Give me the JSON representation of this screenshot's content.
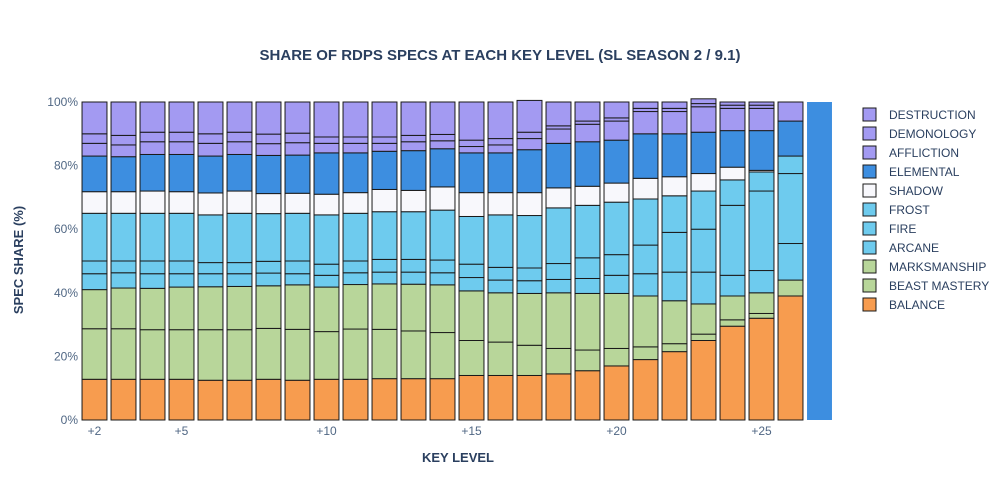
{
  "chart_data": {
    "type": "bar",
    "stacked": true,
    "title": "SHARE OF RDPS SPECS AT EACH KEY LEVEL (SL SEASON 2 / 9.1)",
    "xlabel": "KEY LEVEL",
    "ylabel": "SPEC SHARE (%)",
    "ylim": [
      0,
      100
    ],
    "y_ticks": [
      {
        "value": 0,
        "label": "0%"
      },
      {
        "value": 20,
        "label": "20%"
      },
      {
        "value": 40,
        "label": "40%"
      },
      {
        "value": 60,
        "label": "60%"
      },
      {
        "value": 80,
        "label": "80%"
      },
      {
        "value": 100,
        "label": "100%"
      }
    ],
    "x_ticks": [
      {
        "value": 2,
        "label": "+2"
      },
      {
        "value": 5,
        "label": "+5"
      },
      {
        "value": 10,
        "label": "+10"
      },
      {
        "value": 15,
        "label": "+15"
      },
      {
        "value": 20,
        "label": "+20"
      },
      {
        "value": 25,
        "label": "+25"
      }
    ],
    "legend_position": "right",
    "categories": [
      2,
      3,
      4,
      5,
      6,
      7,
      8,
      9,
      10,
      11,
      12,
      13,
      14,
      15,
      16,
      17,
      18,
      19,
      20,
      21,
      22,
      23,
      24,
      25,
      26,
      27
    ],
    "series": [
      {
        "name": "BALANCE",
        "color": "#f79c4f",
        "values": [
          12.8,
          12.8,
          12.8,
          12.8,
          12.5,
          12.5,
          12.8,
          12.5,
          12.8,
          12.8,
          13.0,
          13.0,
          13.0,
          14.0,
          14.0,
          14.0,
          14.5,
          15.5,
          17.0,
          19.0,
          21.5,
          25.0,
          29.5,
          32.0,
          39.0,
          0
        ]
      },
      {
        "name": "BEAST MASTERY",
        "color": "#b8d69a",
        "values": [
          15.9,
          15.9,
          15.6,
          15.6,
          15.9,
          15.9,
          16.0,
          16.0,
          15.0,
          15.8,
          15.5,
          15.0,
          14.5,
          11.0,
          10.5,
          9.5,
          8.0,
          6.5,
          5.5,
          4.0,
          2.5,
          2.0,
          2.0,
          1.5,
          0,
          0
        ]
      },
      {
        "name": "MARKSMANSHIP",
        "color": "#b8d69a",
        "values": [
          12.3,
          12.8,
          13.0,
          13.4,
          13.5,
          13.6,
          13.4,
          14.0,
          14.0,
          14.0,
          14.3,
          14.7,
          15.0,
          15.6,
          15.5,
          16.3,
          17.5,
          17.8,
          17.3,
          16.0,
          13.5,
          9.5,
          7.5,
          6.5,
          5.0,
          0
        ]
      },
      {
        "name": "ARCANE",
        "color": "#6ecbee",
        "values": [
          5.0,
          4.8,
          4.6,
          4.2,
          4.1,
          4.0,
          4.0,
          3.5,
          3.7,
          3.7,
          3.7,
          3.8,
          3.8,
          4.2,
          4.0,
          4.0,
          4.2,
          4.7,
          5.7,
          7.0,
          9.0,
          10.0,
          6.5,
          7.0,
          11.5,
          0
        ]
      },
      {
        "name": "FIRE",
        "color": "#6ecbee",
        "values": [
          4.0,
          3.7,
          4.0,
          4.0,
          3.5,
          3.5,
          3.7,
          4.0,
          3.5,
          3.7,
          4.0,
          4.0,
          4.0,
          4.2,
          4.0,
          4.0,
          5.0,
          6.5,
          6.5,
          9.0,
          12.5,
          13.5,
          22.0,
          25.0,
          22.0,
          0
        ]
      },
      {
        "name": "FROST",
        "color": "#6ecbee",
        "values": [
          15.0,
          15.0,
          15.0,
          15.0,
          15.0,
          15.5,
          15.0,
          15.0,
          15.5,
          15.0,
          15.0,
          15.0,
          15.7,
          15.0,
          16.5,
          16.5,
          17.5,
          16.5,
          16.5,
          14.5,
          11.5,
          12.0,
          8.0,
          6.0,
          5.5,
          0
        ]
      },
      {
        "name": "SHADOW",
        "color": "#f8f8fc",
        "values": [
          6.8,
          6.8,
          7.0,
          6.8,
          6.9,
          7.0,
          6.3,
          6.3,
          6.5,
          6.5,
          7.0,
          6.7,
          7.3,
          7.5,
          7.0,
          7.2,
          6.3,
          6.0,
          6.0,
          6.5,
          6.0,
          5.5,
          4.0,
          0.5,
          0,
          0
        ]
      },
      {
        "name": "ELEMENTAL",
        "color": "#3d8ee0",
        "values": [
          11.2,
          11.0,
          11.5,
          11.7,
          11.6,
          11.5,
          12.0,
          12.0,
          13.0,
          12.5,
          12.0,
          12.5,
          12.0,
          12.5,
          12.5,
          13.5,
          14.0,
          14.0,
          13.5,
          14.0,
          13.5,
          13.0,
          11.5,
          12.5,
          11.0,
          100.0
        ]
      },
      {
        "name": "AFFLICTION",
        "color": "#a39af2",
        "values": [
          4.0,
          3.7,
          4.0,
          4.0,
          4.0,
          4.0,
          3.7,
          3.9,
          3.0,
          3.0,
          2.5,
          2.8,
          2.5,
          2.0,
          2.5,
          3.5,
          4.5,
          5.5,
          6.0,
          7.0,
          7.0,
          8.0,
          7.0,
          7.0,
          6.0,
          0
        ]
      },
      {
        "name": "DEMONOLOGY",
        "color": "#a39af2",
        "values": [
          3.0,
          3.0,
          3.0,
          3.0,
          3.0,
          3.0,
          3.0,
          3.0,
          2.0,
          2.0,
          2.0,
          2.0,
          2.0,
          2.0,
          2.0,
          2.0,
          1.0,
          1.0,
          1.0,
          1.0,
          1.0,
          1.0,
          1.0,
          1.0,
          0,
          0
        ]
      },
      {
        "name": "DESTRUCTION",
        "color": "#a39af2",
        "values": [
          10.0,
          10.5,
          9.5,
          9.5,
          10.0,
          9.5,
          10.1,
          9.8,
          11.0,
          11.0,
          11.0,
          10.5,
          10.2,
          12.0,
          11.5,
          10.0,
          7.5,
          6.0,
          5.0,
          2.0,
          2.0,
          1.5,
          1.0,
          1.0,
          0,
          0
        ]
      }
    ]
  }
}
